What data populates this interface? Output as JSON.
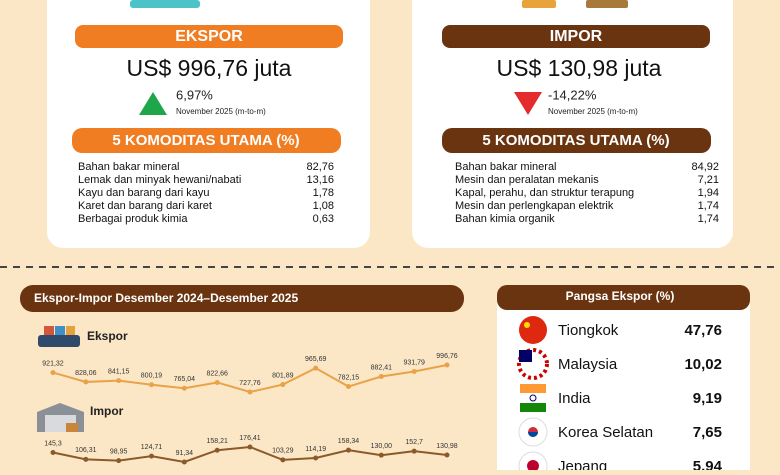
{
  "export": {
    "title": "EKSPOR",
    "value": "US$ 996,76 juta",
    "change": "6,97%",
    "period": "November 2025 (m-to-m)",
    "commodities_title": "5 KOMODITAS UTAMA (%)",
    "commodities": [
      {
        "name": "Bahan bakar mineral",
        "share": "82,76"
      },
      {
        "name": "Lemak dan minyak hewani/nabati",
        "share": "13,16"
      },
      {
        "name": "Kayu dan barang dari kayu",
        "share": "1,78"
      },
      {
        "name": "Karet dan barang dari karet",
        "share": "1,08"
      },
      {
        "name": "Berbagai produk kimia",
        "share": "0,63"
      }
    ]
  },
  "import": {
    "title": "IMPOR",
    "value": "US$ 130,98 juta",
    "change": "-14,22%",
    "period": "November 2025 (m-to-m)",
    "commodities_title": "5 KOMODITAS UTAMA (%)",
    "commodities": [
      {
        "name": "Bahan bakar mineral",
        "share": "84,92"
      },
      {
        "name": "Mesin dan peralatan mekanis",
        "share": "7,21"
      },
      {
        "name": "Kapal, perahu, dan struktur terapung",
        "share": "1,94"
      },
      {
        "name": "Mesin dan perlengkapan elektrik",
        "share": "1,74"
      },
      {
        "name": "Bahan kimia organik",
        "share": "1,74"
      }
    ]
  },
  "chart_data": {
    "type": "line",
    "title": "Ekspor-Impor Desember 2024–Desember 2025",
    "series": [
      {
        "name": "Ekspor",
        "color": "#e9a248",
        "values": [
          921.32,
          828.06,
          841.15,
          800.19,
          765.04,
          822.66,
          727.76,
          801.89,
          965.69,
          782.15,
          882.41,
          931.79,
          996.76
        ],
        "value_labels": [
          "921,32",
          "828,06",
          "841,15",
          "800,19",
          "765,04",
          "822,66",
          "727,76",
          "801,89",
          "965,69",
          "782,15",
          "882,41",
          "931,79",
          "996,76"
        ]
      },
      {
        "name": "Impor",
        "color": "#8a5a2b",
        "values": [
          145.3,
          106.31,
          98.95,
          124.71,
          91.34,
          158.21,
          176.41,
          103.29,
          114.19,
          158.34,
          130.0,
          152.7,
          130.98
        ],
        "value_labels": [
          "145,3",
          "106,31",
          "98,95",
          "124,71",
          "91,34",
          "158,21",
          "176,41",
          "103,29",
          "114,19",
          "158,34",
          "130,00",
          "152,7",
          "130,98"
        ]
      }
    ]
  },
  "export_share": {
    "title": "Pangsa Ekspor (%)",
    "countries": [
      {
        "name": "Tiongkok",
        "share": "47,76"
      },
      {
        "name": "Malaysia",
        "share": "10,02"
      },
      {
        "name": "India",
        "share": "9,19"
      },
      {
        "name": "Korea Selatan",
        "share": "7,65"
      },
      {
        "name": "Jepang",
        "share": "5,94"
      }
    ]
  }
}
